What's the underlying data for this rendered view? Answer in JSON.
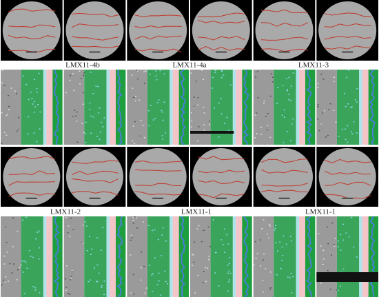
{
  "panels": [
    {
      "label": "LMX11-4b"
    },
    {
      "label": "LMX11-4a"
    },
    {
      "label": "LMX11-3"
    },
    {
      "label": "LMX11-2"
    },
    {
      "label": "LMX11-1"
    },
    {
      "label": "LMX11-1"
    }
  ]
}
